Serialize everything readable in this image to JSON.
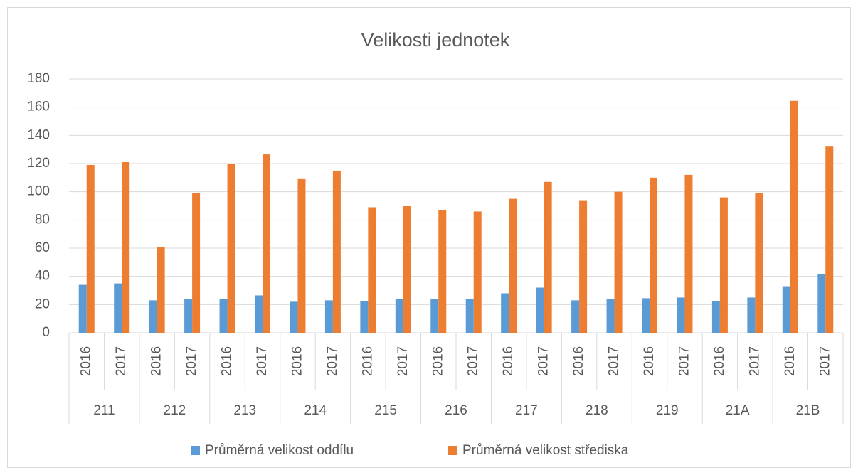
{
  "chart_data": {
    "type": "bar",
    "title": "Velikosti jednotek",
    "categories": [
      "2016",
      "2017",
      "2016",
      "2017",
      "2016",
      "2017",
      "2016",
      "2017",
      "2016",
      "2017",
      "2016",
      "2017",
      "2016",
      "2017",
      "2016",
      "2017",
      "2016",
      "2017",
      "2016",
      "2017",
      "2016",
      "2017"
    ],
    "groups": [
      "211",
      "212",
      "213",
      "214",
      "215",
      "216",
      "217",
      "218",
      "219",
      "21A",
      "21B"
    ],
    "series": [
      {
        "name": "Průměrná velikost oddílu",
        "color": "#5b9bd5",
        "values": [
          34,
          35,
          23,
          24,
          24,
          26.5,
          22,
          23,
          22.5,
          24,
          24,
          24,
          28,
          32,
          23,
          24,
          24.5,
          25,
          22.5,
          25,
          33,
          41.5
        ]
      },
      {
        "name": "Průměrná velikost střediska",
        "color": "#ed7d31",
        "values": [
          119,
          121,
          60.5,
          99,
          119.5,
          126.5,
          109,
          115,
          89,
          90,
          87,
          86,
          95,
          107,
          94,
          100,
          110,
          112,
          96,
          99,
          164.5,
          132
        ]
      }
    ],
    "ylim": [
      0,
      180
    ],
    "yticks": [
      0,
      20,
      40,
      60,
      80,
      100,
      120,
      140,
      160,
      180
    ],
    "grid": true,
    "legend": "bottom"
  }
}
